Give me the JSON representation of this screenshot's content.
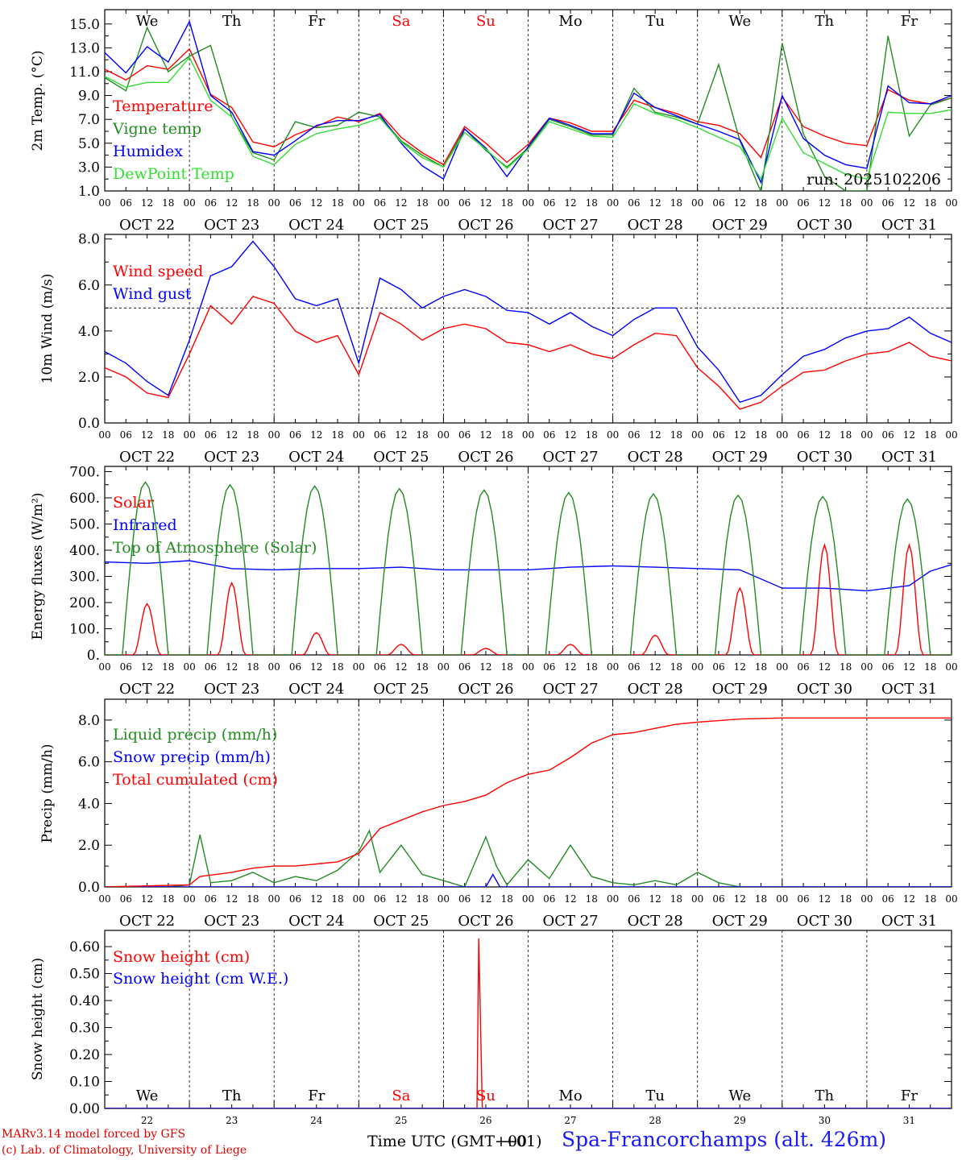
{
  "chart_data": [
    {
      "type": "line",
      "ylabel": "2m Temp. (°C)",
      "ylim": [
        1.0,
        16.2
      ],
      "yticks": [
        "1.0",
        "3.0",
        "5.0",
        "7.0",
        "9.0",
        "11.0",
        "13.0",
        "15.0"
      ],
      "days": [
        {
          "abbr": "We",
          "color": "#000000"
        },
        {
          "abbr": "Th",
          "color": "#000000"
        },
        {
          "abbr": "Fr",
          "color": "#000000"
        },
        {
          "abbr": "Sa",
          "color": "#ff0000"
        },
        {
          "abbr": "Su",
          "color": "#ff0000"
        },
        {
          "abbr": "Mo",
          "color": "#000000"
        },
        {
          "abbr": "Tu",
          "color": "#000000"
        },
        {
          "abbr": "We",
          "color": "#000000"
        },
        {
          "abbr": "Th",
          "color": "#000000"
        },
        {
          "abbr": "Fr",
          "color": "#000000"
        }
      ],
      "annotation": "run: 2025102206",
      "x_hours": [
        0,
        6,
        12,
        18,
        24,
        30,
        36,
        42,
        48,
        54,
        60,
        66,
        72,
        78,
        84,
        90,
        96,
        102,
        108,
        114,
        120,
        126,
        132,
        138,
        144,
        150,
        156,
        162,
        168,
        174,
        180,
        186,
        192,
        198,
        204,
        210,
        216,
        222,
        228,
        234,
        240
      ],
      "series": [
        {
          "name": "Temperature",
          "color": "#ff0000",
          "values": [
            11.2,
            10.3,
            11.5,
            11.2,
            12.9,
            9.1,
            8.0,
            5.1,
            4.7,
            5.7,
            6.4,
            7.2,
            6.8,
            7.5,
            5.5,
            4.2,
            3.2,
            6.4,
            5.0,
            3.4,
            4.9,
            7.1,
            6.7,
            6.0,
            6.0,
            8.6,
            8.0,
            7.5,
            6.8,
            6.5,
            5.8,
            3.8,
            8.9,
            6.4,
            5.6,
            5.0,
            4.8,
            9.5,
            8.6,
            8.3,
            8.8
          ]
        },
        {
          "name": "Vigne temp",
          "color": "#228b22",
          "values": [
            10.5,
            9.4,
            14.7,
            11.0,
            12.3,
            13.2,
            7.2,
            4.2,
            3.6,
            6.8,
            6.3,
            6.5,
            7.6,
            7.2,
            5.2,
            4.0,
            3.0,
            6.2,
            4.4,
            3.0,
            4.6,
            7.0,
            6.4,
            5.7,
            5.7,
            9.6,
            7.6,
            7.2,
            6.6,
            11.6,
            5.2,
            0.9,
            13.4,
            5.8,
            2.2,
            1.0,
            1.0,
            14.0,
            5.6,
            8.2,
            8.8
          ]
        },
        {
          "name": "Humidex",
          "color": "#0000ff",
          "values": [
            12.6,
            10.9,
            13.1,
            11.8,
            15.2,
            9.0,
            7.6,
            4.3,
            4.0,
            5.2,
            6.5,
            6.9,
            6.9,
            7.4,
            5.0,
            3.1,
            2.0,
            6.2,
            4.6,
            2.2,
            4.7,
            7.1,
            6.5,
            5.8,
            5.8,
            9.2,
            8.0,
            7.3,
            6.6,
            6.0,
            5.3,
            1.7,
            9.0,
            5.4,
            4.0,
            3.2,
            2.9,
            9.8,
            8.4,
            8.3,
            9.0
          ]
        },
        {
          "name": "DewPoint Temp",
          "color": "#33dd33",
          "values": [
            10.6,
            9.7,
            10.1,
            10.1,
            12.2,
            8.6,
            7.2,
            3.9,
            3.2,
            4.9,
            5.8,
            6.2,
            6.5,
            7.1,
            5.1,
            3.8,
            3.0,
            5.9,
            4.5,
            2.9,
            4.5,
            6.8,
            6.2,
            5.6,
            5.5,
            8.3,
            7.5,
            7.0,
            6.3,
            5.5,
            4.7,
            2.0,
            7.1,
            4.2,
            3.3,
            2.4,
            2.0,
            7.6,
            7.5,
            7.5,
            7.8
          ]
        }
      ]
    },
    {
      "type": "line",
      "ylabel": "10m Wind (m/s)",
      "ylim": [
        0.0,
        8.2
      ],
      "yticks": [
        "0.0",
        "2.0",
        "4.0",
        "6.0",
        "8.0"
      ],
      "reference_line": 5.0,
      "x_hours": [
        0,
        6,
        12,
        18,
        24,
        30,
        36,
        42,
        48,
        54,
        60,
        66,
        72,
        78,
        84,
        90,
        96,
        102,
        108,
        114,
        120,
        126,
        132,
        138,
        144,
        150,
        156,
        162,
        168,
        174,
        180,
        186,
        192,
        198,
        204,
        210,
        216,
        222,
        228,
        234,
        240
      ],
      "series": [
        {
          "name": "Wind speed",
          "color": "#ff0000",
          "values": [
            2.4,
            2.0,
            1.3,
            1.1,
            3.0,
            5.1,
            4.3,
            5.5,
            5.2,
            4.0,
            3.5,
            3.8,
            2.1,
            4.8,
            4.3,
            3.6,
            4.1,
            4.3,
            4.1,
            3.5,
            3.4,
            3.1,
            3.4,
            3.0,
            2.8,
            3.4,
            3.9,
            3.8,
            2.4,
            1.6,
            0.6,
            0.9,
            1.6,
            2.2,
            2.3,
            2.7,
            3.0,
            3.1,
            3.5,
            2.9,
            2.7
          ]
        },
        {
          "name": "Wind gust",
          "color": "#0000ff",
          "values": [
            3.1,
            2.6,
            1.8,
            1.2,
            3.6,
            6.4,
            6.8,
            7.9,
            6.8,
            5.4,
            5.1,
            5.4,
            2.6,
            6.3,
            5.8,
            5.0,
            5.5,
            5.8,
            5.5,
            4.9,
            4.8,
            4.3,
            4.8,
            4.2,
            3.8,
            4.5,
            5.0,
            5.0,
            3.3,
            2.3,
            0.9,
            1.2,
            2.1,
            2.9,
            3.2,
            3.7,
            4.0,
            4.1,
            4.6,
            3.9,
            3.5
          ]
        }
      ]
    },
    {
      "type": "line",
      "ylabel": "Energy fluxes (W/m²)",
      "ylim": [
        0,
        720
      ],
      "yticks": [
        "0.",
        "100.",
        "200.",
        "300.",
        "400.",
        "500.",
        "600.",
        "700."
      ],
      "series": [
        {
          "name": "Solar",
          "color": "#ff0000",
          "daily_peak": [
            195,
            275,
            85,
            40,
            25,
            40,
            75,
            255,
            420,
            420
          ]
        },
        {
          "name": "Infrared",
          "color": "#0000ff",
          "x_hours": [
            0,
            12,
            24,
            36,
            48,
            60,
            72,
            84,
            96,
            108,
            120,
            132,
            144,
            156,
            168,
            180,
            192,
            204,
            216,
            228,
            234,
            240
          ],
          "values": [
            355,
            350,
            360,
            330,
            325,
            330,
            330,
            335,
            325,
            325,
            325,
            335,
            340,
            335,
            330,
            325,
            255,
            255,
            245,
            265,
            320,
            345
          ]
        },
        {
          "name": "Top of Atmosphere (Solar)",
          "color": "#228b22",
          "daily_peak": [
            660,
            650,
            645,
            635,
            630,
            620,
            615,
            610,
            605,
            595
          ]
        }
      ]
    },
    {
      "type": "line",
      "ylabel": "Precip (mm/h)",
      "ylim": [
        0.0,
        9.0
      ],
      "yticks": [
        "0.0",
        "2.0",
        "4.0",
        "6.0",
        "8.0"
      ],
      "series": [
        {
          "name": "Liquid precip (mm/h)",
          "color": "#228b22",
          "x_hours": [
            0,
            18,
            24,
            27,
            30,
            36,
            42,
            48,
            54,
            60,
            66,
            72,
            75,
            78,
            84,
            90,
            96,
            102,
            108,
            111,
            114,
            120,
            126,
            132,
            138,
            144,
            150,
            156,
            162,
            168,
            174,
            180,
            240
          ],
          "values": [
            0.0,
            0.0,
            0.1,
            2.5,
            0.2,
            0.3,
            0.7,
            0.2,
            0.5,
            0.3,
            0.8,
            1.7,
            2.7,
            0.7,
            2.0,
            0.6,
            0.3,
            0.0,
            2.4,
            1.0,
            0.1,
            1.3,
            0.4,
            2.0,
            0.5,
            0.2,
            0.1,
            0.3,
            0.1,
            0.7,
            0.2,
            0.0,
            0.0
          ]
        },
        {
          "name": "Snow precip (mm/h)",
          "color": "#0000ff",
          "x_hours": [
            0,
            108,
            110,
            112,
            240
          ],
          "values": [
            0.0,
            0.0,
            0.6,
            0.0,
            0.0
          ]
        },
        {
          "name": "Total cumulated (cm)",
          "color": "#ff0000",
          "x_hours": [
            0,
            24,
            27,
            36,
            42,
            48,
            54,
            60,
            66,
            72,
            78,
            84,
            90,
            96,
            102,
            108,
            114,
            120,
            126,
            132,
            138,
            144,
            150,
            156,
            162,
            168,
            180,
            192,
            204,
            216,
            228,
            240
          ],
          "values": [
            0.0,
            0.1,
            0.5,
            0.7,
            0.9,
            1.0,
            1.0,
            1.1,
            1.2,
            1.6,
            2.8,
            3.2,
            3.6,
            3.9,
            4.1,
            4.4,
            5.0,
            5.4,
            5.6,
            6.2,
            6.9,
            7.3,
            7.4,
            7.6,
            7.8,
            7.9,
            8.05,
            8.1,
            8.1,
            8.1,
            8.1,
            8.1
          ]
        }
      ]
    },
    {
      "type": "line",
      "ylabel": "Snow height (cm)",
      "ylim": [
        0.0,
        0.66
      ],
      "yticks": [
        "0.00",
        "0.10",
        "0.20",
        "0.30",
        "0.40",
        "0.50",
        "0.60"
      ],
      "day_numbers": [
        "22",
        "23",
        "24",
        "25",
        "26",
        "27",
        "28",
        "29",
        "30",
        "31"
      ],
      "series": [
        {
          "name": "Snow height (cm)",
          "color": "#ff0000",
          "x_hours": [
            0,
            105.5,
            106,
            107,
            107.5,
            240
          ],
          "values": [
            0.0,
            0.0,
            0.63,
            0.0,
            0.0,
            0.0
          ]
        },
        {
          "name": "Snow height (cm W.E.)",
          "color": "#0000ff",
          "x_hours": [
            0,
            240
          ],
          "values": [
            0.0,
            0.0
          ]
        }
      ]
    }
  ],
  "common": {
    "hour_labels": [
      "00",
      "06",
      "12",
      "18"
    ],
    "final_hour_label": "00",
    "date_labels": [
      "OCT 22",
      "OCT 23",
      "OCT 24",
      "OCT 25",
      "OCT 26",
      "OCT 27",
      "OCT 28",
      "OCT 29",
      "OCT 30",
      "OCT 31"
    ]
  },
  "footer": {
    "credit_line1": "MARv3.14 model forced by GFS",
    "credit_line2": "(c) Lab. of Climatology, University of Liege",
    "xlabel": "Time UTC (GMT+00",
    "xlabel_overlap": "+01)",
    "station": "Spa-Francorchamps (alt. 426m)"
  }
}
